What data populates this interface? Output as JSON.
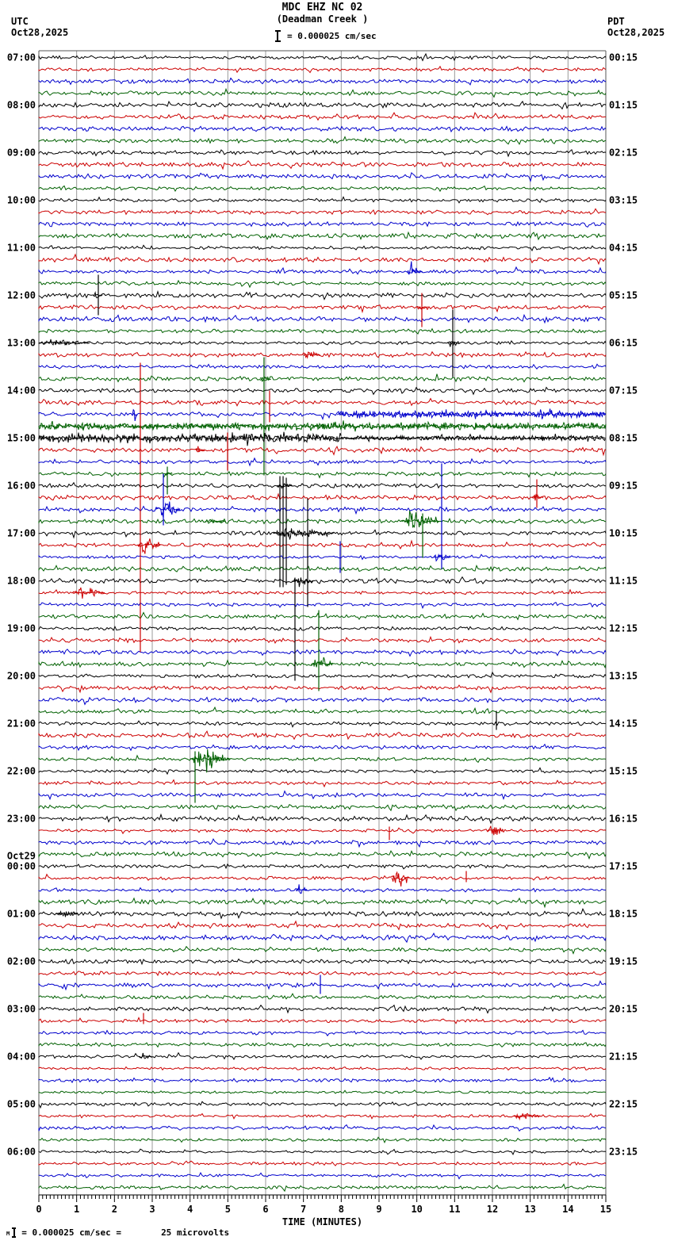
{
  "header": {
    "station_line": "MDC EHZ NC 02",
    "location_line": "(Deadman Creek )",
    "scale_text": "= 0.000025 cm/sec",
    "left_tz": "UTC",
    "left_date": "Oct28,2025",
    "right_tz": "PDT",
    "right_date": "Oct28,2025"
  },
  "footer": {
    "prefix_glyph": "M",
    "equation": "= 0.000025 cm/sec =",
    "value": "25 microvolts"
  },
  "chart_data": {
    "type": "line",
    "subtype": "helicorder-seismogram",
    "title": "MDC EHZ NC 02",
    "subtitle": "(Deadman Creek )",
    "amplitude_scale": "= 0.000025 cm/sec",
    "utc_date": "Oct28,2025",
    "pdt_date": "Oct28,2025",
    "x_axis": {
      "label": "TIME (MINUTES)",
      "min": 0,
      "max": 15,
      "tick_labels": [
        "0",
        "1",
        "2",
        "3",
        "4",
        "5",
        "6",
        "7",
        "8",
        "9",
        "10",
        "11",
        "12",
        "13",
        "14",
        "15"
      ],
      "minor_ticks_per_minute": 10,
      "grid": "vertical gray line each minute"
    },
    "minutes_per_row": 15,
    "rows_per_hour": 4,
    "total_rows": 96,
    "color_cycle": [
      "k",
      "r",
      "b",
      "g"
    ],
    "colors": {
      "k": "#000000",
      "r": "#cc0000",
      "b": "#0000cc",
      "g": "#006000",
      "grid": "#999999",
      "frame": "#555555"
    },
    "utc_hour_labels": [
      "07:00",
      "08:00",
      "09:00",
      "10:00",
      "11:00",
      "12:00",
      "13:00",
      "14:00",
      "15:00",
      "16:00",
      "17:00",
      "18:00",
      "19:00",
      "20:00",
      "21:00",
      "22:00",
      "23:00",
      "00:00",
      "01:00",
      "02:00",
      "03:00",
      "04:00",
      "05:00",
      "06:00"
    ],
    "pdt_hour_labels": [
      "00:15",
      "01:15",
      "02:15",
      "03:15",
      "04:15",
      "05:15",
      "06:15",
      "07:15",
      "08:15",
      "09:15",
      "10:15",
      "11:15",
      "12:15",
      "13:15",
      "14:15",
      "15:15",
      "16:15",
      "17:15",
      "18:15",
      "19:15",
      "20:15",
      "21:15",
      "22:15",
      "23:15"
    ],
    "date_change": {
      "label": "Oct29",
      "row": 68
    },
    "events": [
      {
        "row": 18,
        "type": "burst",
        "m0": 9.75,
        "m1": 10.15,
        "amp": 8
      },
      {
        "row": 20,
        "type": "vline",
        "m": 1.573,
        "up": 26,
        "down": 25
      },
      {
        "row": 20,
        "type": "burst",
        "m0": 1.45,
        "m1": 1.7,
        "amp": 4
      },
      {
        "row": 21,
        "type": "vline",
        "m": 10.133,
        "up": 18,
        "down": 25
      },
      {
        "row": 21,
        "type": "burst",
        "m0": 10.0,
        "m1": 10.3,
        "amp": 4
      },
      {
        "row": 24,
        "type": "burst",
        "m0": 0.0,
        "m1": 1.35,
        "amp": 4.5
      },
      {
        "row": 24,
        "type": "vline",
        "m": 10.951,
        "up": 42,
        "down": 43
      },
      {
        "row": 24,
        "type": "burst",
        "m0": 10.8,
        "m1": 11.15,
        "amp": 5
      },
      {
        "row": 25,
        "type": "burst",
        "m0": 7.0,
        "m1": 7.45,
        "amp": 6
      },
      {
        "row": 27,
        "type": "vline",
        "m": 5.957,
        "up": 27,
        "down": 122
      },
      {
        "row": 27,
        "type": "burst",
        "m0": 5.85,
        "m1": 6.15,
        "amp": 5
      },
      {
        "row": 29,
        "type": "vline",
        "m": 6.105,
        "up": 15,
        "down": 25
      },
      {
        "row": 30,
        "type": "burst",
        "m0": 2.48,
        "m1": 2.62,
        "amp": 7
      },
      {
        "row": 30,
        "type": "band",
        "m0": 7.9,
        "m1": 15,
        "amp": 5
      },
      {
        "row": 31,
        "type": "band",
        "m0": 0,
        "m1": 15,
        "amp": 5
      },
      {
        "row": 32,
        "type": "band",
        "m0": 0,
        "m1": 8,
        "amp": 6.5
      },
      {
        "row": 32,
        "type": "band",
        "m0": 8,
        "m1": 15,
        "amp": 3.5
      },
      {
        "row": 33,
        "type": "burst",
        "m0": 4.15,
        "m1": 4.4,
        "amp": 4
      },
      {
        "row": 33,
        "type": "vline",
        "m": 4.993,
        "up": 22,
        "down": 26
      },
      {
        "row": 35,
        "type": "vline",
        "m": 3.399,
        "up": 9,
        "down": 26
      },
      {
        "row": 35,
        "type": "burst",
        "m0": 3.3,
        "m1": 3.55,
        "amp": 4
      },
      {
        "row": 36,
        "type": "burst",
        "m0": 6.3,
        "m1": 6.7,
        "amp": 3
      },
      {
        "row": 37,
        "type": "vline",
        "m": 13.175,
        "up": 23,
        "down": 13
      },
      {
        "row": 37,
        "type": "burst",
        "m0": 13.05,
        "m1": 13.35,
        "amp": 4
      },
      {
        "row": 38,
        "type": "burst",
        "m0": 3.1,
        "m1": 3.75,
        "amp": 11
      },
      {
        "row": 38,
        "type": "vline",
        "m": 3.294,
        "up": 45,
        "down": 20
      },
      {
        "row": 39,
        "type": "burst",
        "m0": 4.4,
        "m1": 4.95,
        "amp": 4
      },
      {
        "row": 39,
        "type": "burst",
        "m0": 9.6,
        "m1": 10.6,
        "amp": 13
      },
      {
        "row": 39,
        "type": "vline",
        "m": 10.154,
        "up": 10,
        "down": 46
      },
      {
        "row": 40,
        "type": "burst",
        "m0": 6.2,
        "m1": 7.8,
        "amp": 7
      },
      {
        "row": 40,
        "type": "vline",
        "m": 6.378,
        "up": 72,
        "down": 68
      },
      {
        "row": 40,
        "type": "vline",
        "m": 6.462,
        "up": 72,
        "down": 68
      },
      {
        "row": 40,
        "type": "vline",
        "m": 6.546,
        "up": 70,
        "down": 65
      },
      {
        "row": 40,
        "type": "vline",
        "m": 7.112,
        "up": 44,
        "down": 93
      },
      {
        "row": 41,
        "type": "vline",
        "m": 2.685,
        "up": 230,
        "down": 135
      },
      {
        "row": 41,
        "type": "burst",
        "m0": 2.6,
        "m1": 3.25,
        "amp": 12
      },
      {
        "row": 42,
        "type": "vline",
        "m": 7.972,
        "up": 20,
        "down": 20
      },
      {
        "row": 42,
        "type": "vline",
        "m": 10.657,
        "up": 118,
        "down": 15
      },
      {
        "row": 42,
        "type": "burst",
        "m0": 10.45,
        "m1": 10.9,
        "amp": 8
      },
      {
        "row": 44,
        "type": "vline",
        "m": 6.776,
        "up": 4,
        "down": 126
      },
      {
        "row": 44,
        "type": "burst",
        "m0": 6.7,
        "m1": 7.25,
        "amp": 5
      },
      {
        "row": 45,
        "type": "burst",
        "m0": 0.9,
        "m1": 1.75,
        "amp": 7
      },
      {
        "row": 51,
        "type": "vline",
        "m": 7.406,
        "up": 68,
        "down": 34
      },
      {
        "row": 51,
        "type": "burst",
        "m0": 7.2,
        "m1": 7.8,
        "amp": 9
      },
      {
        "row": 56,
        "type": "vline",
        "m": 12.105,
        "up": 16,
        "down": 8
      },
      {
        "row": 59,
        "type": "burst",
        "m0": 4.0,
        "m1": 5.05,
        "amp": 14
      },
      {
        "row": 59,
        "type": "vline",
        "m": 4.133,
        "up": 10,
        "down": 55
      },
      {
        "row": 65,
        "type": "burst",
        "m0": 11.85,
        "m1": 12.3,
        "amp": 9
      },
      {
        "row": 65,
        "type": "vline",
        "m": 9.273,
        "up": 5,
        "down": 12
      },
      {
        "row": 69,
        "type": "burst",
        "m0": 9.33,
        "m1": 9.8,
        "amp": 10
      },
      {
        "row": 69,
        "type": "vline",
        "m": 11.308,
        "up": 9,
        "down": 5
      },
      {
        "row": 70,
        "type": "burst",
        "m0": 6.8,
        "m1": 7.12,
        "amp": 7
      },
      {
        "row": 72,
        "type": "burst",
        "m0": 0.45,
        "m1": 1.05,
        "amp": 5
      },
      {
        "row": 78,
        "type": "vline",
        "m": 7.448,
        "up": 13,
        "down": 11
      },
      {
        "row": 81,
        "type": "vline",
        "m": 2.769,
        "up": 10,
        "down": 4
      },
      {
        "row": 84,
        "type": "burst",
        "m0": 2.65,
        "m1": 3.0,
        "amp": 5
      },
      {
        "row": 89,
        "type": "burst",
        "m0": 12.55,
        "m1": 13.3,
        "amp": 4.5
      }
    ]
  }
}
